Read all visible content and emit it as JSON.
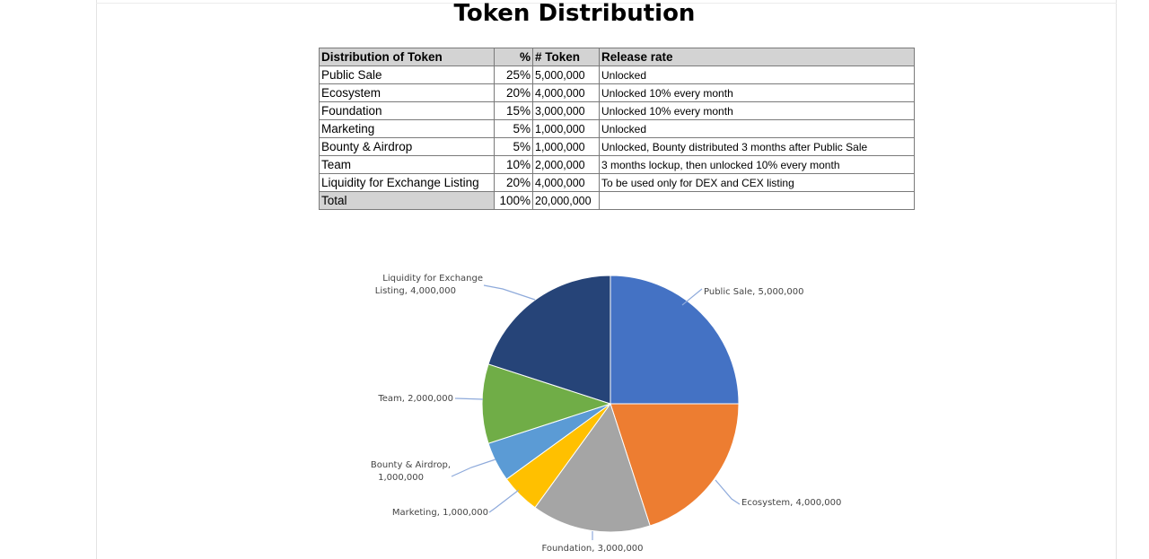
{
  "page": {
    "title": "Token Distribution"
  },
  "table": {
    "headers": [
      "Distribution of Token",
      "%",
      "# Token",
      "Release rate"
    ],
    "rows": [
      [
        "Public Sale",
        "25%",
        "5,000,000",
        "Unlocked"
      ],
      [
        "Ecosystem",
        "20%",
        "4,000,000",
        "Unlocked 10% every month"
      ],
      [
        "Foundation",
        "15%",
        "3,000,000",
        "Unlocked 10% every month"
      ],
      [
        "Marketing",
        "5%",
        "1,000,000",
        "Unlocked"
      ],
      [
        "Bounty & Airdrop",
        "5%",
        "1,000,000",
        "Unlocked, Bounty distributed 3 months after Public Sale"
      ],
      [
        "Team",
        "10%",
        "2,000,000",
        "3 months lockup, then unlocked 10% every month"
      ],
      [
        "Liquidity for Exchange Listing",
        "20%",
        "4,000,000",
        "To be used only for DEX and CEX listing"
      ],
      [
        "Total",
        "100%",
        "20,000,000",
        ""
      ]
    ]
  },
  "chart_data": {
    "type": "pie",
    "categories": [
      "Public Sale",
      "Ecosystem",
      "Foundation",
      "Marketing",
      "Bounty & Airdrop",
      "Team",
      "Liquidity for Exchange Listing"
    ],
    "values": [
      5000000,
      4000000,
      3000000,
      1000000,
      1000000,
      2000000,
      4000000
    ],
    "data_labels": [
      [
        "Public Sale, 5,000,000"
      ],
      [
        "Ecosystem, 4,000,000"
      ],
      [
        "Foundation, 3,000,000"
      ],
      [
        "Marketing, 1,000,000"
      ],
      [
        "Bounty & Airdrop,",
        "1,000,000"
      ],
      [
        "Team, 2,000,000"
      ],
      [
        "Liquidity for Exchange",
        "Listing, 4,000,000"
      ]
    ],
    "colors": [
      "#4472c4",
      "#ed7d31",
      "#a5a5a5",
      "#ffc000",
      "#5b9bd5",
      "#70ad47",
      "#264478"
    ],
    "start_angle": "12 o'clock",
    "direction": "clockwise",
    "legend": "none"
  }
}
